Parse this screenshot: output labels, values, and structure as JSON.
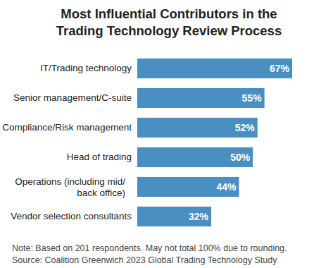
{
  "chart_data": {
    "type": "bar",
    "orientation": "horizontal",
    "title": "Most Influential Contributors in the\nTrading Technology Review Process",
    "categories": [
      "IT/Trading technology",
      "Senior management/C-suite",
      "Compliance/Risk management",
      "Head of trading",
      "Operations (including mid/\nback office)",
      "Vendor selection consultants"
    ],
    "values": [
      67,
      55,
      52,
      50,
      44,
      32
    ],
    "value_labels": [
      "67%",
      "55%",
      "52%",
      "50%",
      "44%",
      "32%"
    ],
    "data_labels": true,
    "tick_labels": "y",
    "color": "#4a8fc1",
    "note": "Note: Based on 201 respondents. May not total 100% due to rounding.",
    "source": "Source: Coalition Greenwich 2023 Global Trading Technology Study"
  }
}
